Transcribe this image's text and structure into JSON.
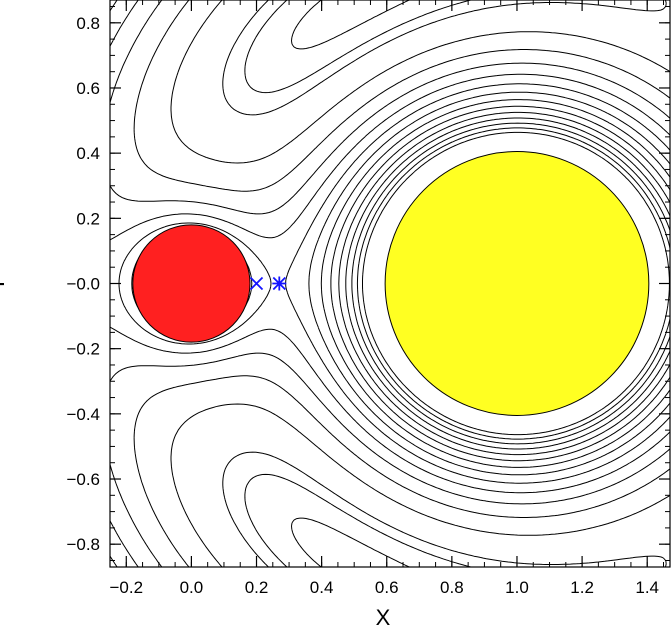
{
  "chart_data": {
    "type": "contour",
    "xlabel": "X",
    "ylabel": "Y",
    "xlim": [
      -0.25,
      1.47
    ],
    "ylim": [
      -0.87,
      0.87
    ],
    "x_ticks": [
      {
        "value": -0.2,
        "label": "−0.2"
      },
      {
        "value": 0.0,
        "label": "0.0"
      },
      {
        "value": 0.2,
        "label": "0.2"
      },
      {
        "value": 0.4,
        "label": "0.4"
      },
      {
        "value": 0.6,
        "label": "0.6"
      },
      {
        "value": 0.8,
        "label": "0.8"
      },
      {
        "value": 1.0,
        "label": "1.0"
      },
      {
        "value": 1.2,
        "label": "1.2"
      },
      {
        "value": 1.4,
        "label": "1.4"
      }
    ],
    "y_ticks": [
      {
        "value": 0.8,
        "label": "0.8"
      },
      {
        "value": 0.6,
        "label": "0.6"
      },
      {
        "value": 0.4,
        "label": "0.4"
      },
      {
        "value": 0.2,
        "label": "0.2"
      },
      {
        "value": 0.0,
        "label": "−0.0"
      },
      {
        "value": -0.2,
        "label": "−0.2"
      },
      {
        "value": -0.4,
        "label": "−0.4"
      },
      {
        "value": -0.6,
        "label": "−0.6"
      },
      {
        "value": -0.8,
        "label": "−0.8"
      }
    ],
    "bodies": [
      {
        "center": [
          0.0,
          0.0
        ],
        "radius": 0.18,
        "color": "#ff2020"
      },
      {
        "center": [
          1.0,
          0.0
        ],
        "radius": 0.405,
        "color": "#ffff22"
      }
    ],
    "markers": [
      {
        "symbol": "x",
        "x": 0.2,
        "y": 0.0,
        "color": "#1414ff"
      },
      {
        "symbol": "asterisk",
        "x": 0.27,
        "y": 0.0,
        "color": "#1414ff"
      }
    ],
    "field": {
      "mass_primary": 1.0,
      "mass_secondary": 0.08,
      "omega": 1.05
    },
    "contour_line_color": "#000000"
  }
}
